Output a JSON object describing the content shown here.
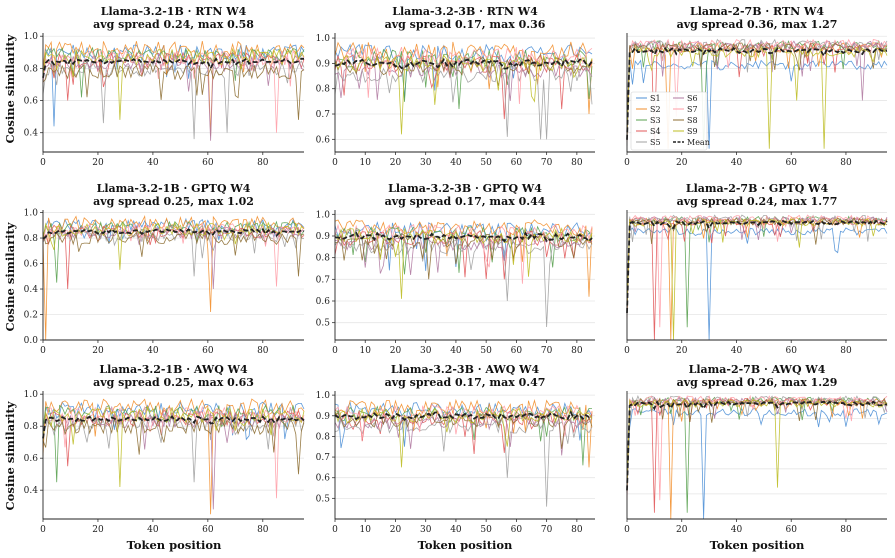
{
  "figure": {
    "ylabel": "Cosine similarity",
    "xlabel": "Token position"
  },
  "legend": {
    "entries": [
      "S1",
      "S2",
      "S3",
      "S4",
      "S5",
      "S6",
      "S7",
      "S8",
      "S9",
      "Mean"
    ],
    "panel": 2,
    "placement": "lower-left"
  },
  "series_colors": [
    "#4c8fd6",
    "#f28e2b",
    "#59a14f",
    "#e15759",
    "#a0a0a0",
    "#b07aa1",
    "#ff9da7",
    "#8c6d31",
    "#bcbd22"
  ],
  "mean_color": "#222222",
  "chart_data": [
    {
      "type": "line",
      "title1": "Llama-3.2-1B · RTN W4",
      "title2": "avg spread 0.24, max 0.58",
      "xlim": [
        0,
        95
      ],
      "xticks": [
        0,
        20,
        40,
        60,
        80
      ],
      "ylim": [
        0.28,
        1.02
      ],
      "yticks": [
        "0.4",
        "0.6",
        "0.8",
        "1.0"
      ],
      "grid": true,
      "n": 96,
      "series_base": [
        0.9,
        0.92,
        0.88,
        0.85,
        0.8,
        0.83,
        0.86,
        0.78,
        0.87
      ],
      "mean_level": 0.84,
      "noise": 0.05,
      "dips": [
        [
          0,
          4,
          0.44
        ],
        [
          1,
          61,
          0.38
        ],
        [
          2,
          14,
          0.62
        ],
        [
          3,
          9,
          0.6
        ],
        [
          4,
          55,
          0.36
        ],
        [
          4,
          67,
          0.4
        ],
        [
          5,
          61,
          0.35
        ],
        [
          6,
          85,
          0.4
        ],
        [
          7,
          93,
          0.48
        ],
        [
          8,
          28,
          0.48
        ],
        [
          4,
          22,
          0.46
        ]
      ],
      "start": 0.7
    },
    {
      "type": "line",
      "title1": "Llama-3.2-3B · RTN W4",
      "title2": "avg spread 0.17, max 0.36",
      "xlim": [
        0,
        86
      ],
      "xticks": [
        0,
        10,
        20,
        30,
        40,
        50,
        60,
        70,
        80
      ],
      "ylim": [
        0.55,
        1.02
      ],
      "yticks": [
        "0.6",
        "0.7",
        "0.8",
        "0.9",
        "1.0"
      ],
      "grid": true,
      "n": 86,
      "series_base": [
        0.94,
        0.95,
        0.92,
        0.9,
        0.86,
        0.88,
        0.93,
        0.89,
        0.9
      ],
      "mean_level": 0.9,
      "noise": 0.035,
      "dips": [
        [
          4,
          57,
          0.61
        ],
        [
          4,
          68,
          0.6
        ],
        [
          4,
          70,
          0.6
        ],
        [
          8,
          22,
          0.62
        ],
        [
          1,
          84,
          0.7
        ],
        [
          3,
          56,
          0.68
        ],
        [
          2,
          41,
          0.72
        ],
        [
          5,
          8,
          0.8
        ]
      ],
      "start": 0.95
    },
    {
      "type": "line",
      "title1": "Llama-2-7B · RTN W4",
      "title2": "avg spread 0.36, max 1.27",
      "xlim": [
        0,
        95
      ],
      "xticks": [
        0,
        20,
        40,
        60,
        80
      ],
      "ylim": [
        0.28,
        1.02
      ],
      "yticks": [],
      "grid": true,
      "n": 96,
      "series_base": [
        0.82,
        0.93,
        0.94,
        0.93,
        0.95,
        0.94,
        0.95,
        0.93,
        0.9
      ],
      "mean_level": 0.91,
      "noise": 0.03,
      "dips": [
        [
          3,
          10,
          0.3
        ],
        [
          1,
          15,
          0.3
        ],
        [
          2,
          28,
          0.3
        ],
        [
          0,
          30,
          0.3
        ],
        [
          8,
          52,
          0.3
        ],
        [
          8,
          72,
          0.3
        ],
        [
          8,
          62,
          0.6
        ],
        [
          5,
          86,
          0.6
        ],
        [
          6,
          18,
          0.5
        ]
      ],
      "start": 0.3
    },
    {
      "type": "line",
      "title1": "Llama-3.2-1B · GPTQ W4",
      "title2": "avg spread 0.25, max 1.02",
      "xlim": [
        0,
        95
      ],
      "xticks": [
        0,
        20,
        40,
        60,
        80
      ],
      "ylim": [
        0.0,
        1.02
      ],
      "yticks": [
        "0.0",
        "0.2",
        "0.4",
        "0.6",
        "0.8",
        "1.0"
      ],
      "grid": true,
      "n": 96,
      "series_base": [
        0.9,
        0.92,
        0.88,
        0.85,
        0.82,
        0.84,
        0.87,
        0.8,
        0.87
      ],
      "mean_level": 0.85,
      "noise": 0.05,
      "dips": [
        [
          1,
          1,
          0.0
        ],
        [
          1,
          61,
          0.22
        ],
        [
          3,
          9,
          0.4
        ],
        [
          5,
          62,
          0.4
        ],
        [
          6,
          85,
          0.42
        ],
        [
          7,
          93,
          0.5
        ],
        [
          8,
          28,
          0.55
        ],
        [
          4,
          55,
          0.5
        ],
        [
          2,
          5,
          0.45
        ]
      ],
      "start": 0.75
    },
    {
      "type": "line",
      "title1": "Llama-3.2-3B · GPTQ W4",
      "title2": "avg spread 0.17, max 0.44",
      "xlim": [
        0,
        86
      ],
      "xticks": [
        0,
        10,
        20,
        30,
        40,
        50,
        60,
        70,
        80
      ],
      "ylim": [
        0.42,
        1.02
      ],
      "yticks": [
        "0.5",
        "0.6",
        "0.7",
        "0.8",
        "0.9",
        "1.0"
      ],
      "grid": true,
      "n": 86,
      "series_base": [
        0.93,
        0.94,
        0.91,
        0.89,
        0.85,
        0.87,
        0.92,
        0.88,
        0.9
      ],
      "mean_level": 0.9,
      "noise": 0.035,
      "dips": [
        [
          4,
          70,
          0.48
        ],
        [
          4,
          57,
          0.6
        ],
        [
          8,
          22,
          0.61
        ],
        [
          1,
          84,
          0.62
        ],
        [
          3,
          56,
          0.7
        ],
        [
          5,
          25,
          0.72
        ],
        [
          6,
          62,
          0.68
        ],
        [
          2,
          41,
          0.73
        ]
      ],
      "start": 0.97
    },
    {
      "type": "line",
      "title1": "Llama-2-7B · GPTQ W4",
      "title2": "avg spread 0.24, max 1.77",
      "xlim": [
        0,
        95
      ],
      "xticks": [
        0,
        20,
        40,
        60,
        80
      ],
      "ylim": [
        0.0,
        1.02
      ],
      "yticks": [],
      "grid": true,
      "n": 96,
      "series_base": [
        0.85,
        0.93,
        0.94,
        0.93,
        0.95,
        0.94,
        0.95,
        0.93,
        0.92
      ],
      "mean_level": 0.92,
      "noise": 0.03,
      "dips": [
        [
          3,
          10,
          0.0
        ],
        [
          1,
          16,
          0.0
        ],
        [
          8,
          17,
          0.0
        ],
        [
          2,
          22,
          0.1
        ],
        [
          0,
          30,
          0.0
        ],
        [
          6,
          12,
          0.1
        ]
      ],
      "start": 0.15
    },
    {
      "type": "line",
      "title1": "Llama-3.2-1B · AWQ W4",
      "title2": "avg spread 0.25, max 0.63",
      "xlim": [
        0,
        95
      ],
      "xticks": [
        0,
        20,
        40,
        60,
        80
      ],
      "ylim": [
        0.22,
        1.02
      ],
      "yticks": [
        "0.4",
        "0.6",
        "0.8",
        "1.0"
      ],
      "grid": true,
      "n": 96,
      "series_base": [
        0.9,
        0.92,
        0.88,
        0.85,
        0.82,
        0.84,
        0.87,
        0.8,
        0.87
      ],
      "mean_level": 0.84,
      "noise": 0.05,
      "dips": [
        [
          1,
          61,
          0.25
        ],
        [
          5,
          62,
          0.28
        ],
        [
          8,
          28,
          0.42
        ],
        [
          6,
          85,
          0.35
        ],
        [
          7,
          93,
          0.5
        ],
        [
          4,
          55,
          0.45
        ],
        [
          2,
          5,
          0.45
        ],
        [
          3,
          9,
          0.55
        ]
      ],
      "start": 0.7
    },
    {
      "type": "line",
      "title1": "Llama-3.2-3B · AWQ W4",
      "title2": "avg spread 0.17, max 0.47",
      "xlim": [
        0,
        86
      ],
      "xticks": [
        0,
        10,
        20,
        30,
        40,
        50,
        60,
        70,
        80
      ],
      "ylim": [
        0.4,
        1.02
      ],
      "yticks": [
        "0.5",
        "0.6",
        "0.7",
        "0.8",
        "0.9",
        "1.0"
      ],
      "grid": true,
      "n": 86,
      "series_base": [
        0.93,
        0.94,
        0.91,
        0.89,
        0.85,
        0.87,
        0.92,
        0.88,
        0.9
      ],
      "mean_level": 0.9,
      "noise": 0.035,
      "dips": [
        [
          4,
          70,
          0.46
        ],
        [
          4,
          57,
          0.6
        ],
        [
          8,
          22,
          0.65
        ],
        [
          1,
          84,
          0.65
        ],
        [
          3,
          56,
          0.72
        ],
        [
          2,
          82,
          0.66
        ],
        [
          5,
          25,
          0.74
        ]
      ],
      "start": 0.96
    },
    {
      "type": "line",
      "title1": "Llama-2-7B · AWQ W4",
      "title2": "avg spread 0.26, max 1.29",
      "xlim": [
        0,
        95
      ],
      "xticks": [
        0,
        20,
        40,
        60,
        80
      ],
      "ylim": [
        0.0,
        1.02
      ],
      "yticks": [],
      "grid": true,
      "n": 96,
      "series_base": [
        0.85,
        0.93,
        0.94,
        0.93,
        0.95,
        0.94,
        0.95,
        0.93,
        0.92
      ],
      "mean_level": 0.92,
      "noise": 0.03,
      "dips": [
        [
          3,
          10,
          0.05
        ],
        [
          1,
          16,
          0.0
        ],
        [
          2,
          22,
          0.05
        ],
        [
          0,
          28,
          0.0
        ],
        [
          8,
          55,
          0.25
        ],
        [
          6,
          12,
          0.15
        ]
      ],
      "start": 0.2
    }
  ]
}
